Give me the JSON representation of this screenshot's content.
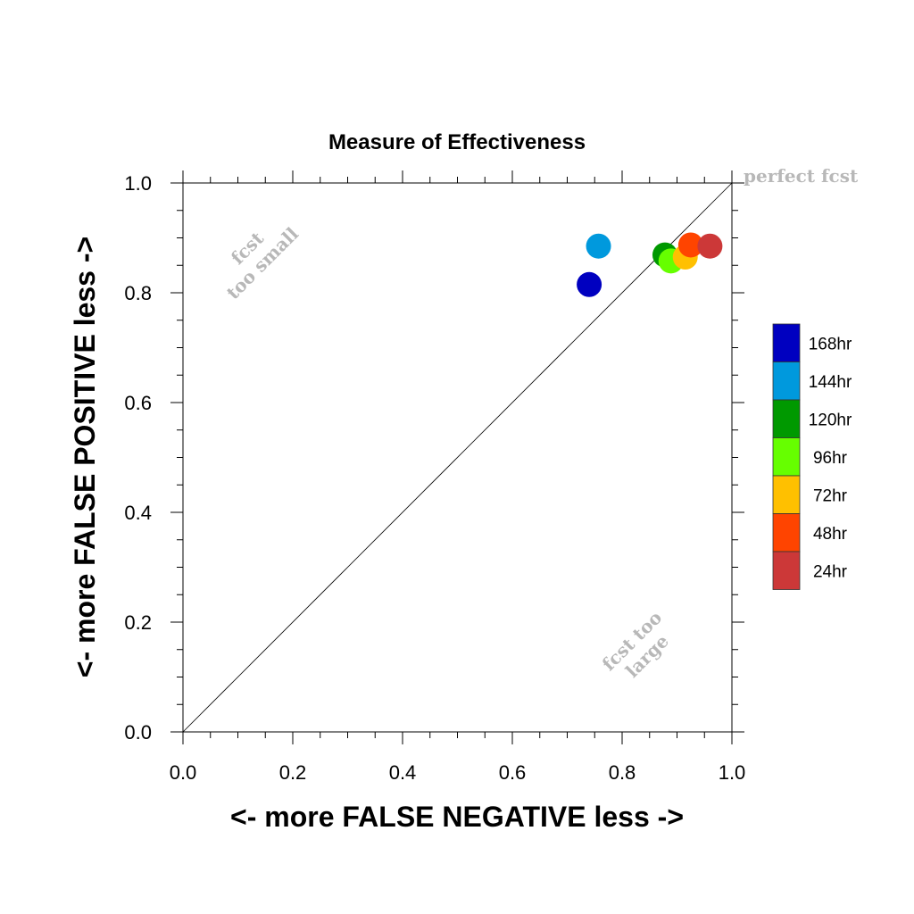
{
  "chart_data": {
    "type": "scatter",
    "title": "Measure of Effectiveness",
    "xlabel": "<- more   FALSE NEGATIVE   less ->",
    "ylabel": "<- more   FALSE POSITIVE   less ->",
    "xlim": [
      0.0,
      1.0
    ],
    "ylim": [
      0.0,
      1.0
    ],
    "xticks": [
      "0.0",
      "0.2",
      "0.4",
      "0.6",
      "0.8",
      "1.0"
    ],
    "yticks": [
      "0.0",
      "0.2",
      "0.4",
      "0.6",
      "0.8",
      "1.0"
    ],
    "grid": false,
    "legend_position": "right",
    "diagonal_reference": true,
    "annotations": {
      "perfect": "perfect fcst",
      "too_small_line1": "fcst",
      "too_small_line2": "too small",
      "too_large_line1": "fcst too",
      "too_large_line2": "large"
    },
    "series": [
      {
        "name": "168hr",
        "color": "#0000c0",
        "x": 0.74,
        "y": 0.815
      },
      {
        "name": "144hr",
        "color": "#0099dd",
        "x": 0.757,
        "y": 0.885
      },
      {
        "name": "120hr",
        "color": "#009900",
        "x": 0.878,
        "y": 0.869
      },
      {
        "name": "96hr",
        "color": "#66ff00",
        "x": 0.889,
        "y": 0.858
      },
      {
        "name": "72hr",
        "color": "#ffc000",
        "x": 0.915,
        "y": 0.865
      },
      {
        "name": "48hr",
        "color": "#ff4400",
        "x": 0.925,
        "y": 0.887
      },
      {
        "name": "24hr",
        "color": "#cc3838",
        "x": 0.96,
        "y": 0.885
      }
    ]
  }
}
